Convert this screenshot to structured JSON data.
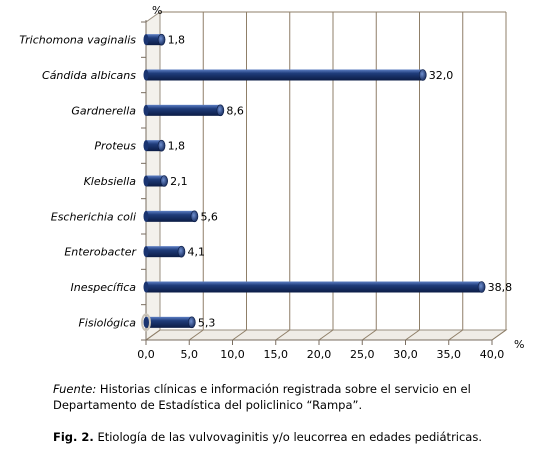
{
  "chart_data": {
    "type": "bar",
    "orientation": "horizontal",
    "unit": "%",
    "categories": [
      "Trichomona vaginalis",
      "Cándida albicans",
      "Gardnerella",
      "Proteus",
      "Klebsiella",
      "Escherichia coli",
      "Enterobacter",
      "Inespecífica",
      "Fisiológica"
    ],
    "values": [
      1.8,
      32.0,
      8.6,
      1.8,
      2.1,
      5.6,
      4.1,
      38.8,
      5.3
    ],
    "value_labels": [
      "1,8",
      "32,0",
      "8,6",
      "1,8",
      "2,1",
      "5,6",
      "4,1",
      "38,8",
      "5,3"
    ],
    "xlim": [
      0,
      40
    ],
    "x_ticks": [
      "0,0",
      "5,0",
      "10,0",
      "15,0",
      "20,0",
      "25,0",
      "30,0",
      "35,0",
      "40,0"
    ],
    "x_unit_label": "%",
    "top_unit_label": "%",
    "grid": true,
    "bar_color": "#1f3c7a"
  },
  "source": {
    "label": "Fuente:",
    "text": "Historias clínicas e información registrada sobre el servicio en el Departamento de Estadística del policlinico “Rampa”."
  },
  "caption": {
    "label": "Fig. 2.",
    "text": "Etiología de las vulvovaginitis y/o leucorrea en edades pediátricas."
  }
}
